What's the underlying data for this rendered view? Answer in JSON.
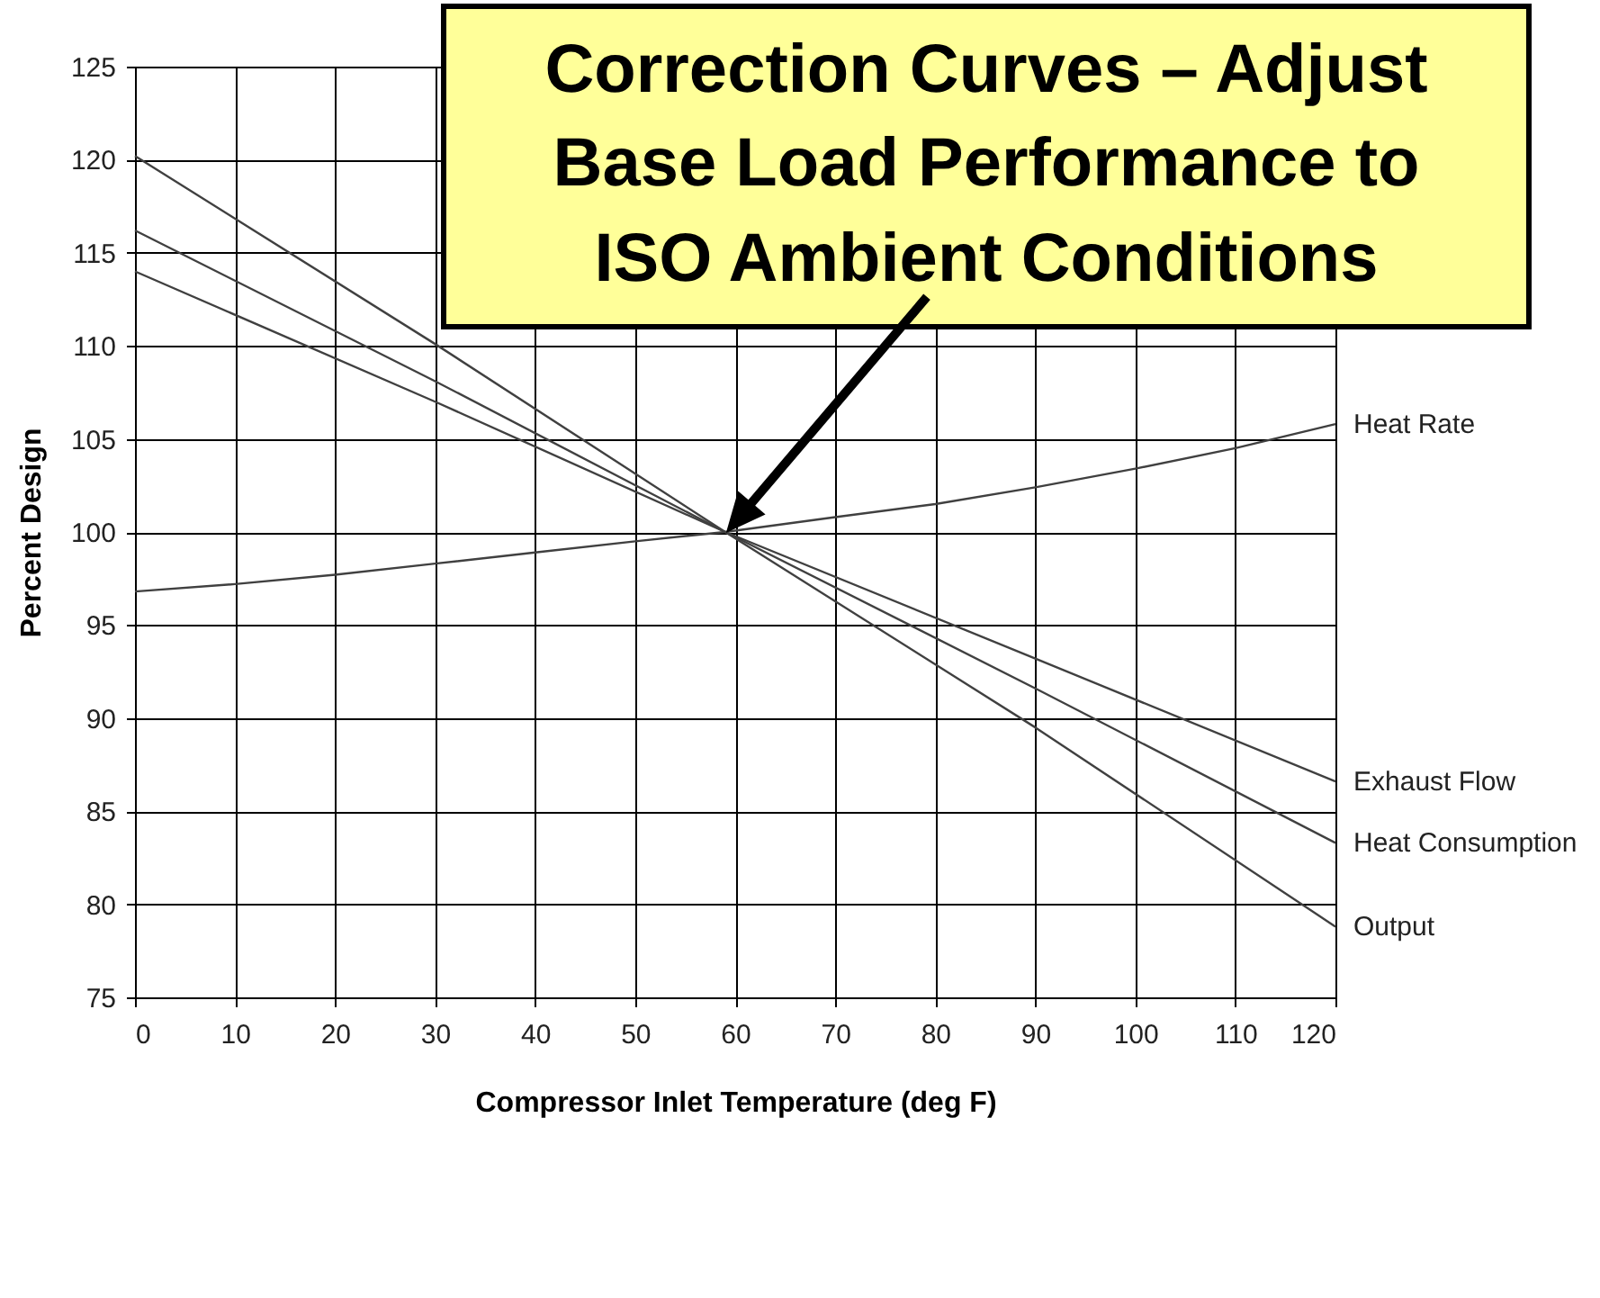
{
  "chart_data": {
    "type": "line",
    "xlabel": "Compressor Inlet Temperature (deg F)",
    "ylabel": "Percent Design",
    "annotations": [
      "Correction Curves – Adjust Base Load Performance to ISO Ambient Conditions"
    ],
    "series": [
      {
        "name": "Heat Rate",
        "color": "#404040",
        "x": [
          0,
          10,
          20,
          30,
          40,
          50,
          59,
          70,
          80,
          90,
          100,
          110,
          120
        ],
        "values": [
          96.8,
          97.2,
          97.7,
          98.3,
          98.9,
          99.5,
          100,
          100.8,
          101.5,
          102.4,
          103.4,
          104.5,
          105.8
        ]
      },
      {
        "name": "Exhaust Flow",
        "color": "#404040",
        "x": [
          0,
          30,
          59,
          90,
          120
        ],
        "values": [
          114,
          107,
          100,
          93.2,
          86.6
        ]
      },
      {
        "name": "Heat Consumption",
        "color": "#404040",
        "x": [
          0,
          30,
          59,
          90,
          120
        ],
        "values": [
          116.2,
          108.1,
          100,
          91.6,
          83.3
        ]
      },
      {
        "name": "Output",
        "color": "#404040",
        "x": [
          0,
          30,
          59,
          90,
          120
        ],
        "values": [
          120.2,
          110.1,
          100,
          89.5,
          78.8
        ]
      }
    ],
    "xlim": [
      0,
      120
    ],
    "xticks": [
      0,
      10,
      20,
      30,
      40,
      50,
      60,
      70,
      80,
      90,
      100,
      110,
      120
    ],
    "ylim": [
      75,
      125
    ],
    "yticks": [
      75,
      80,
      85,
      90,
      95,
      100,
      105,
      110,
      115,
      120,
      125
    ],
    "grid": true,
    "legend": false,
    "marker": "none",
    "line_style": "solid"
  }
}
